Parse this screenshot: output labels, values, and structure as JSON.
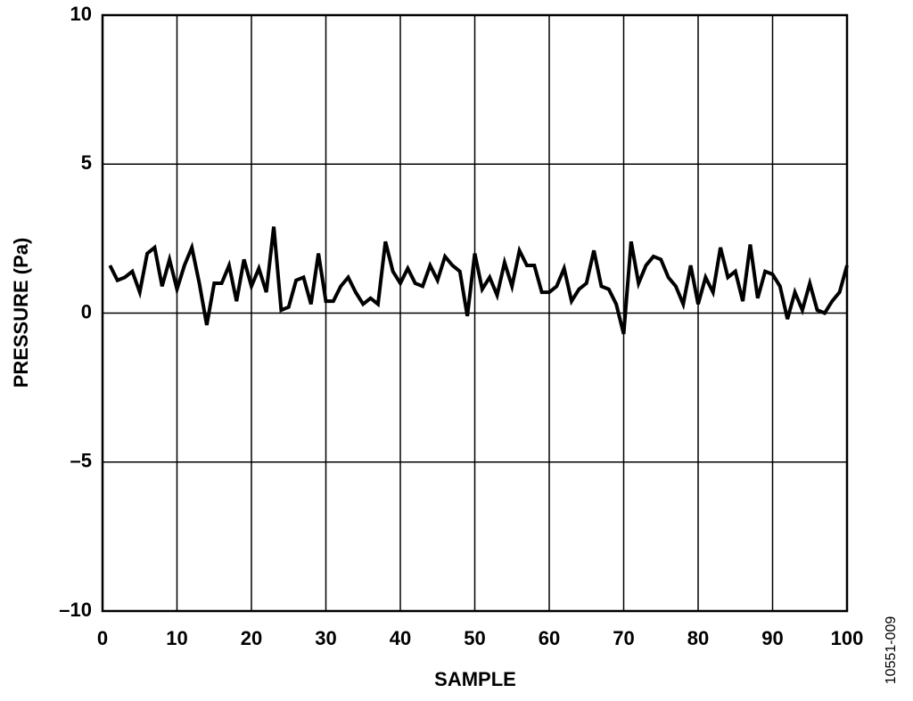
{
  "chart_data": {
    "type": "line",
    "x_label": "SAMPLE",
    "y_label": "PRESSURE (Pa)",
    "figure_code": "10551-009",
    "x": [
      1,
      2,
      3,
      4,
      5,
      6,
      7,
      8,
      9,
      10,
      11,
      12,
      13,
      14,
      15,
      16,
      17,
      18,
      19,
      20,
      21,
      22,
      23,
      24,
      25,
      26,
      27,
      28,
      29,
      30,
      31,
      32,
      33,
      34,
      35,
      36,
      37,
      38,
      39,
      40,
      41,
      42,
      43,
      44,
      45,
      46,
      47,
      48,
      49,
      50,
      51,
      52,
      53,
      54,
      55,
      56,
      57,
      58,
      59,
      60,
      61,
      62,
      63,
      64,
      65,
      66,
      67,
      68,
      69,
      70,
      71,
      72,
      73,
      74,
      75,
      76,
      77,
      78,
      79,
      80,
      81,
      82,
      83,
      84,
      85,
      86,
      87,
      88,
      89,
      90,
      91,
      92,
      93,
      94,
      95,
      96,
      97,
      98,
      99,
      100
    ],
    "values": [
      1.6,
      1.1,
      1.2,
      1.4,
      0.7,
      2.0,
      2.2,
      0.9,
      1.8,
      0.8,
      1.6,
      2.2,
      1.0,
      -0.4,
      1.0,
      1.0,
      1.6,
      0.4,
      1.8,
      0.9,
      1.5,
      0.7,
      2.9,
      0.1,
      0.2,
      1.1,
      1.2,
      0.3,
      2.0,
      0.4,
      0.4,
      0.9,
      1.2,
      0.7,
      0.3,
      0.5,
      0.3,
      2.4,
      1.4,
      1.0,
      1.5,
      1.0,
      0.9,
      1.6,
      1.1,
      1.9,
      1.6,
      1.4,
      -0.1,
      2.0,
      0.8,
      1.2,
      0.6,
      1.7,
      0.9,
      2.1,
      1.6,
      1.6,
      0.7,
      0.7,
      0.9,
      1.5,
      0.4,
      0.8,
      1.0,
      2.1,
      0.9,
      0.8,
      0.3,
      -0.7,
      2.4,
      1.0,
      1.6,
      1.9,
      1.8,
      1.2,
      0.9,
      0.3,
      1.6,
      0.3,
      1.2,
      0.7,
      2.2,
      1.2,
      1.4,
      0.4,
      2.3,
      0.5,
      1.4,
      1.3,
      0.9,
      -0.2,
      0.7,
      0.1,
      1.0,
      0.1,
      0.0,
      0.4,
      0.7,
      1.6
    ],
    "color": "#000000",
    "xlim": [
      0,
      100
    ],
    "xticks": [
      0,
      10,
      20,
      30,
      40,
      50,
      60,
      70,
      80,
      90,
      100
    ],
    "ylim": [
      -10,
      10
    ],
    "yticks": [
      {
        "value": -10,
        "label": "–10"
      },
      {
        "value": -5,
        "label": "–5"
      },
      0,
      5,
      10
    ],
    "grid": true
  }
}
